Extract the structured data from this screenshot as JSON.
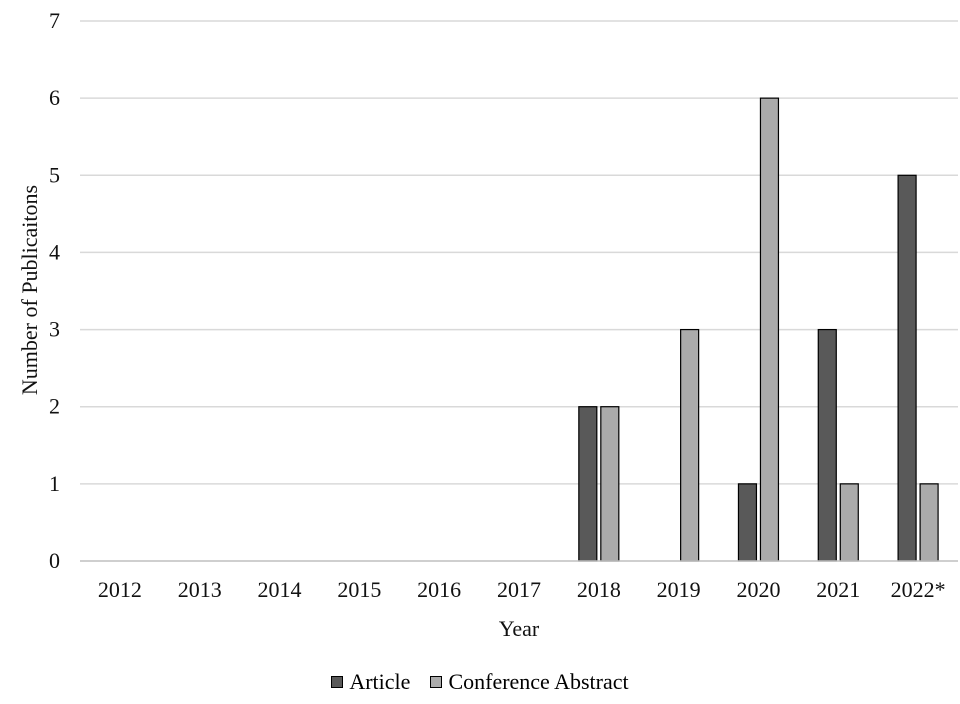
{
  "chart_data": {
    "type": "bar",
    "categories": [
      "2012",
      "2013",
      "2014",
      "2015",
      "2016",
      "2017",
      "2018",
      "2019",
      "2020",
      "2021",
      "2022*"
    ],
    "series": [
      {
        "name": "Article",
        "values": [
          0,
          0,
          0,
          0,
          0,
          0,
          2,
          0,
          1,
          3,
          5
        ],
        "color": "#595959"
      },
      {
        "name": "Conference Abstract",
        "values": [
          0,
          0,
          0,
          0,
          0,
          0,
          2,
          3,
          6,
          1,
          1
        ],
        "color": "#ababab"
      }
    ],
    "title": "",
    "xlabel": "Year",
    "ylabel": "Number of Publicaitons",
    "ylim": [
      0,
      7
    ],
    "yticks": [
      "0",
      "1",
      "2",
      "3",
      "4",
      "5",
      "6",
      "7"
    ],
    "grid": true,
    "legend_position": "bottom"
  }
}
